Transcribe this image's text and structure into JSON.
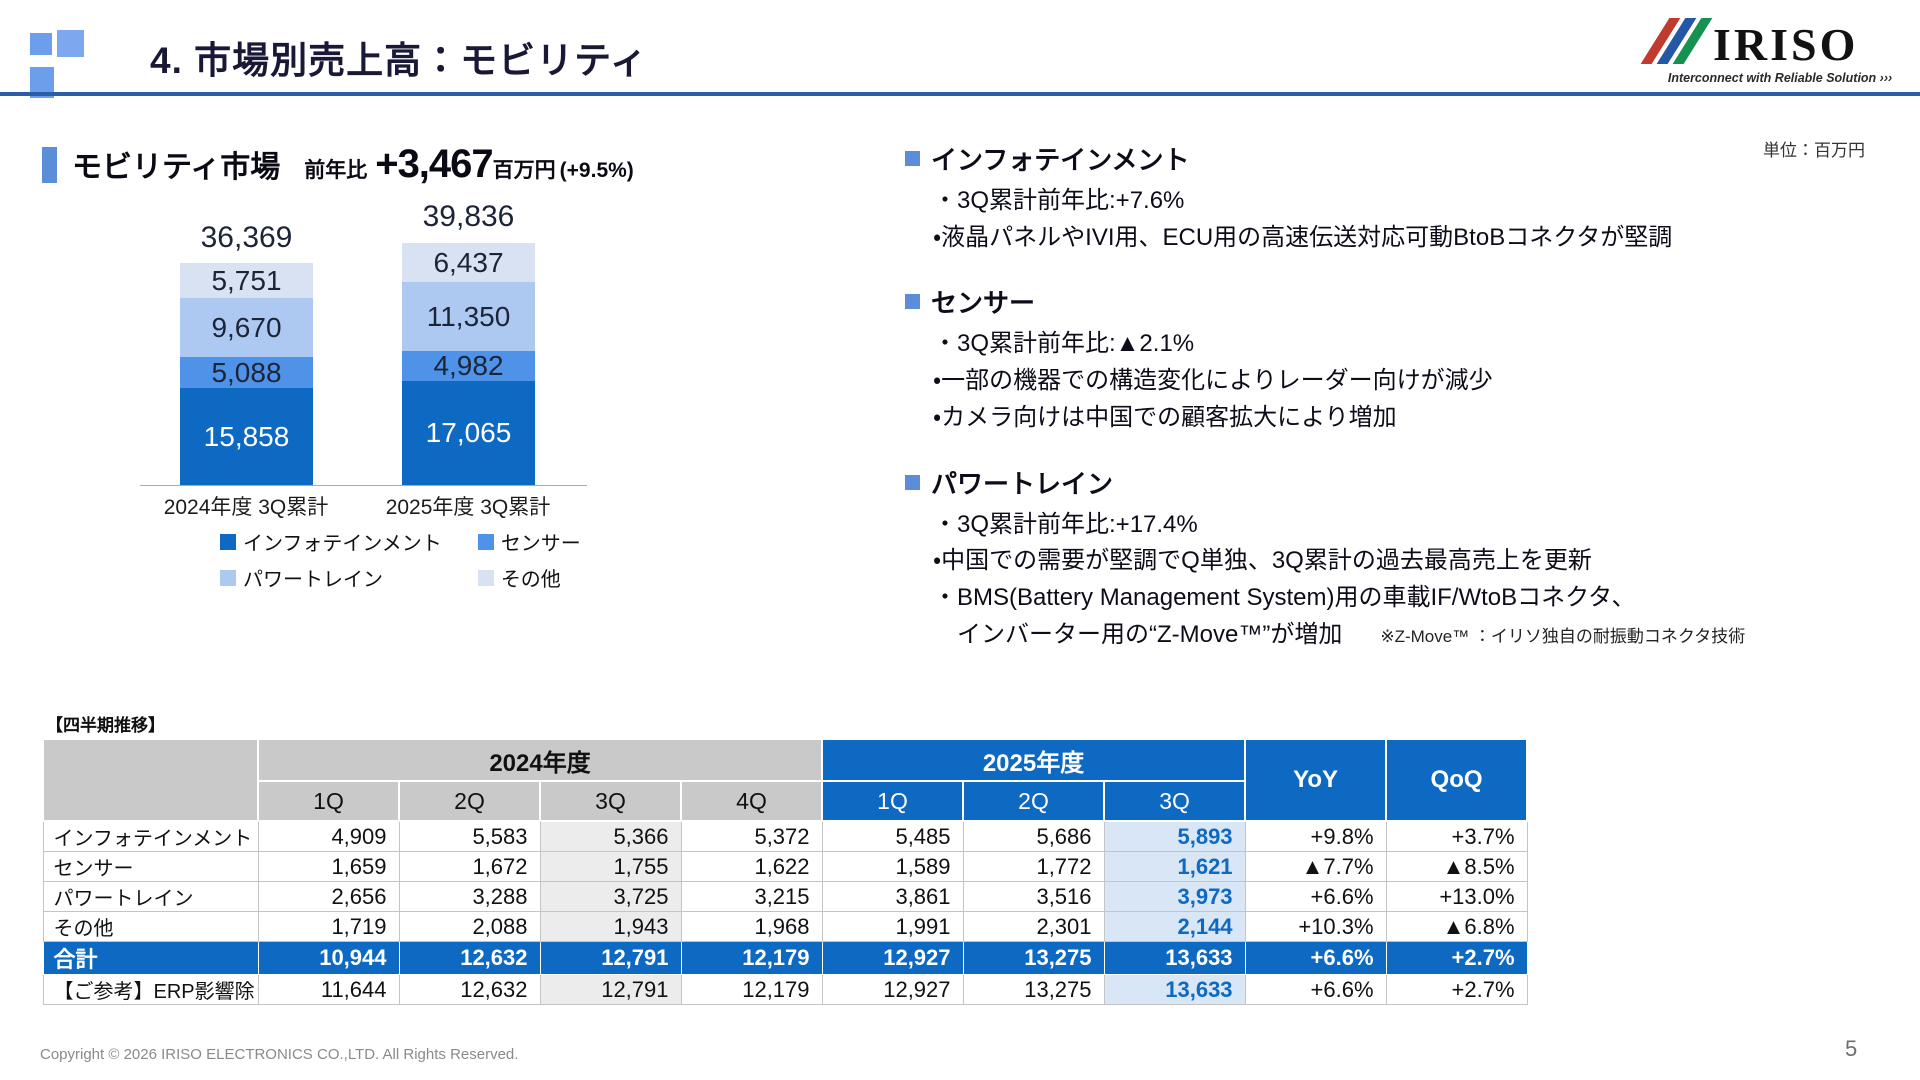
{
  "slide": {
    "title": "4. 市場別売上高：モビリティ",
    "unit_note": "単位：百万円",
    "copyright": "Copyright © 2026 IRISO ELECTRONICS CO.,LTD. All Rights Reserved.",
    "page_number": "5"
  },
  "logo": {
    "word": "IRISO",
    "tagline": "Interconnect with Reliable Solution ›››"
  },
  "summary": {
    "market_label": "モビリティ市場",
    "yoy_label": "前年比",
    "yoy_value": "+3,467",
    "yoy_unit": "百万円",
    "yoy_pct": "(+9.5%)"
  },
  "chart_data": {
    "type": "bar",
    "subtype": "stacked",
    "categories": [
      "2024年度 3Q累計",
      "2025年度 3Q累計"
    ],
    "totals": [
      36369,
      39836
    ],
    "total_labels": [
      "36,369",
      "39,836"
    ],
    "series": [
      {
        "name": "インフォテインメント",
        "values": [
          15858,
          17065
        ],
        "labels": [
          "15,858",
          "17,065"
        ],
        "color": "#0d69c1",
        "label_color": "#ffffff"
      },
      {
        "name": "センサー",
        "values": [
          5088,
          4982
        ],
        "labels": [
          "5,088",
          "4,982"
        ],
        "color": "#4f93e8",
        "label_color": "#1c2438"
      },
      {
        "name": "パワートレイン",
        "values": [
          9670,
          11350
        ],
        "labels": [
          "9,670",
          "11,350"
        ],
        "color": "#adc9f2",
        "label_color": "#1c2438"
      },
      {
        "name": "その他",
        "values": [
          5751,
          6437
        ],
        "labels": [
          "5,751",
          "6,437"
        ],
        "color": "#d9e2f3",
        "label_color": "#1c2438"
      }
    ],
    "title": "モビリティ市場 前年比 +3,467百万円 (+9.5%)",
    "xlabel": "",
    "ylabel": "百万円",
    "ylim": [
      0,
      42000
    ],
    "legend_position": "bottom",
    "grid": false
  },
  "sections": [
    {
      "heading": "インフォテインメント",
      "bullets": [
        "・3Q累計前年比:+7.6%",
        "・液晶パネルやIVI用、ECU用の高速伝送対応可動BtoBコネクタが堅調"
      ]
    },
    {
      "heading": "センサー",
      "bullets": [
        "・3Q累計前年比:▲2.1%",
        "・一部の機器での構造変化によりレーダー向けが減少",
        "・カメラ向けは中国での顧客拡大により増加"
      ]
    },
    {
      "heading": "パワートレイン",
      "bullets": [
        "・3Q累計前年比:+17.4%",
        "・中国での需要が堅調でQ単独、3Q累計の過去最高売上を更新",
        "・BMS(Battery Management System)用の車載IF/WtoBコネクタ、",
        "インバーター用の“Z-Move™”が増加"
      ],
      "note": "※Z-Move™ ：イリソ独自の耐振動コネクタ技術"
    }
  ],
  "table": {
    "caption": "【四半期推移】",
    "fy2024_label": "2024年度",
    "fy2025_label": "2025年度",
    "quarters_2024": [
      "1Q",
      "2Q",
      "3Q",
      "4Q"
    ],
    "quarters_2025": [
      "1Q",
      "2Q",
      "3Q"
    ],
    "yoy_label": "YoY",
    "qoq_label": "QoQ",
    "rows": [
      {
        "label": "インフォテインメント",
        "type": "normal",
        "cells": [
          "4,909",
          "5,583",
          "5,366",
          "5,372",
          "5,485",
          "5,686",
          "5,893",
          "+9.8%",
          "+3.7%"
        ]
      },
      {
        "label": "センサー",
        "type": "normal",
        "cells": [
          "1,659",
          "1,672",
          "1,755",
          "1,622",
          "1,589",
          "1,772",
          "1,621",
          "▲7.7%",
          "▲8.5%"
        ]
      },
      {
        "label": "パワートレイン",
        "type": "normal",
        "cells": [
          "2,656",
          "3,288",
          "3,725",
          "3,215",
          "3,861",
          "3,516",
          "3,973",
          "+6.6%",
          "+13.0%"
        ]
      },
      {
        "label": "その他",
        "type": "normal",
        "cells": [
          "1,719",
          "2,088",
          "1,943",
          "1,968",
          "1,991",
          "2,301",
          "2,144",
          "+10.3%",
          "▲6.8%"
        ]
      },
      {
        "label": "合計",
        "type": "total",
        "cells": [
          "10,944",
          "12,632",
          "12,791",
          "12,179",
          "12,927",
          "13,275",
          "13,633",
          "+6.6%",
          "+2.7%"
        ]
      },
      {
        "label": "【ご参考】ERP影響除き",
        "type": "reference",
        "cells": [
          "11,644",
          "12,632",
          "12,791",
          "12,179",
          "12,927",
          "13,275",
          "13,633",
          "+6.6%",
          "+2.7%"
        ]
      }
    ]
  },
  "colors": {
    "accent_blue": "#0d69c1",
    "medium_blue": "#4f93e8",
    "light_blue": "#adc9f2",
    "pale_blue": "#d9e2f3",
    "header_rule": "#2b5ca9",
    "bullet_square": "#5b8dd9",
    "table_header_gray": "#c9c9c9",
    "col_gray": "#ececec",
    "col_highlight": "#d8e6f6"
  }
}
